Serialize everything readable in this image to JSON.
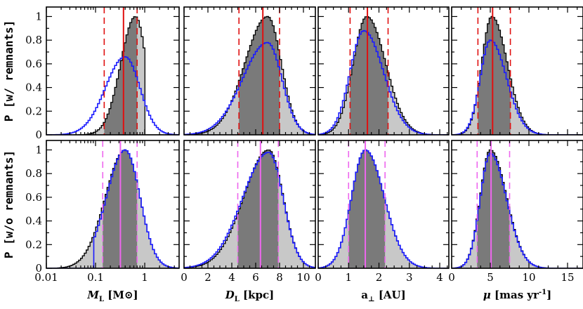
{
  "figure": {
    "row_labels": [
      "P [w/ remnants]",
      "P [w/o remnants]"
    ],
    "y_ticks": [
      "0",
      "0.2",
      "0.4",
      "0.6",
      "0.8",
      "1"
    ],
    "colors": {
      "outer_hist": "#c8c8c8",
      "inner_hist": "#7a7a7a",
      "blue_line": "#1a1aff",
      "red_line": "#e01010",
      "magenta_line": "#ee66ee"
    }
  },
  "chart_data": [
    {
      "type": "area",
      "row": 0,
      "col": 0,
      "xscale": "log",
      "xlim": [
        0.01,
        5
      ],
      "ylim": [
        0,
        1.08
      ],
      "peak": 0.65,
      "sigma_lo": 0.3,
      "sigma_hi": 0.22,
      "blue_peak": 0.4,
      "blue_sigma_lo": 0.4,
      "blue_sigma_hi": 0.3,
      "blue_amp": 0.66,
      "median": 0.37,
      "lo": 0.15,
      "hi": 0.7,
      "line_color": "red",
      "cutoff": 1.05
    },
    {
      "type": "area",
      "row": 0,
      "col": 1,
      "xscale": "linear",
      "xlim": [
        0,
        11
      ],
      "ylim": [
        0,
        1.08
      ],
      "peak": 7.0,
      "sigma_lo": 1.9,
      "sigma_hi": 1.15,
      "blue_peak": 7.0,
      "blue_sigma_lo": 2.1,
      "blue_sigma_hi": 1.2,
      "blue_amp": 0.78,
      "median": 6.6,
      "lo": 4.6,
      "hi": 8.0,
      "line_color": "red"
    },
    {
      "type": "area",
      "row": 0,
      "col": 2,
      "xscale": "linear",
      "xlim": [
        0,
        4.3
      ],
      "ylim": [
        0,
        1.08
      ],
      "peak": 1.6,
      "sigma_lo": 0.45,
      "sigma_hi": 0.62,
      "blue_peak": 1.5,
      "blue_sigma_lo": 0.45,
      "blue_sigma_hi": 0.65,
      "blue_amp": 0.88,
      "median": 1.62,
      "lo": 1.05,
      "hi": 2.3,
      "line_color": "red"
    },
    {
      "type": "area",
      "row": 0,
      "col": 3,
      "xscale": "linear",
      "xlim": [
        0,
        17
      ],
      "ylim": [
        0,
        1.08
      ],
      "peak": 5.2,
      "sigma_lo": 1.3,
      "sigma_hi": 2.0,
      "blue_peak": 5.0,
      "blue_sigma_lo": 1.3,
      "blue_sigma_hi": 2.1,
      "blue_amp": 0.8,
      "median": 5.3,
      "lo": 3.4,
      "hi": 7.6,
      "line_color": "red"
    },
    {
      "type": "area",
      "row": 1,
      "col": 0,
      "xscale": "log",
      "xlim": [
        0.01,
        5
      ],
      "ylim": [
        0,
        1.08
      ],
      "peak": 0.4,
      "sigma_lo": 0.4,
      "sigma_hi": 0.3,
      "blue_peak": 0.4,
      "blue_sigma_lo": 0.38,
      "blue_sigma_hi": 0.3,
      "blue_amp": 1.0,
      "median": 0.32,
      "lo": 0.14,
      "hi": 0.7,
      "line_color": "magenta",
      "blue_start": 0.09
    },
    {
      "type": "area",
      "row": 1,
      "col": 1,
      "xscale": "linear",
      "xlim": [
        0,
        11
      ],
      "ylim": [
        0,
        1.08
      ],
      "peak": 7.1,
      "sigma_lo": 2.1,
      "sigma_hi": 1.2,
      "blue_peak": 7.1,
      "blue_sigma_lo": 2.2,
      "blue_sigma_hi": 1.2,
      "blue_amp": 0.98,
      "median": 6.4,
      "lo": 4.5,
      "hi": 7.9,
      "line_color": "magenta"
    },
    {
      "type": "area",
      "row": 1,
      "col": 2,
      "xscale": "linear",
      "xlim": [
        0,
        4.3
      ],
      "ylim": [
        0,
        1.08
      ],
      "peak": 1.55,
      "sigma_lo": 0.45,
      "sigma_hi": 0.62,
      "blue_peak": 1.55,
      "blue_sigma_lo": 0.45,
      "blue_sigma_hi": 0.62,
      "blue_amp": 1.0,
      "median": 1.55,
      "lo": 1.0,
      "hi": 2.2,
      "line_color": "magenta"
    },
    {
      "type": "area",
      "row": 1,
      "col": 3,
      "xscale": "linear",
      "xlim": [
        0,
        17
      ],
      "ylim": [
        0,
        1.08
      ],
      "peak": 5.0,
      "sigma_lo": 1.3,
      "sigma_hi": 2.1,
      "blue_peak": 5.0,
      "blue_sigma_lo": 1.3,
      "blue_sigma_hi": 2.1,
      "blue_amp": 0.97,
      "median": 5.1,
      "lo": 3.3,
      "hi": 7.5,
      "line_color": "magenta"
    }
  ],
  "x_axes": [
    {
      "ticks": [
        {
          "v": 0.01,
          "label": "0.01"
        },
        {
          "v": 0.1,
          "label": "0.1"
        },
        {
          "v": 1,
          "label": "1"
        }
      ],
      "label_italic": "M",
      "label_sub": "L",
      "label_rest": " [M",
      "label_sun": "⊙",
      "label_end": "]"
    },
    {
      "ticks": [
        {
          "v": 0,
          "label": "0"
        },
        {
          "v": 2,
          "label": "2"
        },
        {
          "v": 4,
          "label": "4"
        },
        {
          "v": 6,
          "label": "6"
        },
        {
          "v": 8,
          "label": "8"
        },
        {
          "v": 10,
          "label": "10"
        }
      ],
      "label_italic": "D",
      "label_sub": "L",
      "label_rest": " [kpc]"
    },
    {
      "ticks": [
        {
          "v": 0,
          "label": "0"
        },
        {
          "v": 1,
          "label": "1"
        },
        {
          "v": 2,
          "label": "2"
        },
        {
          "v": 3,
          "label": "3"
        },
        {
          "v": 4,
          "label": "4"
        }
      ],
      "label_plain": "a",
      "label_sub": "⊥",
      "label_rest": "  [AU]"
    },
    {
      "ticks": [
        {
          "v": 0,
          "label": "0"
        },
        {
          "v": 5,
          "label": "5"
        },
        {
          "v": 10,
          "label": "10"
        },
        {
          "v": 15,
          "label": "15"
        }
      ],
      "label_italic": "μ",
      "label_rest": " [mas yr",
      "label_sup": "-1",
      "label_end": "]"
    }
  ]
}
